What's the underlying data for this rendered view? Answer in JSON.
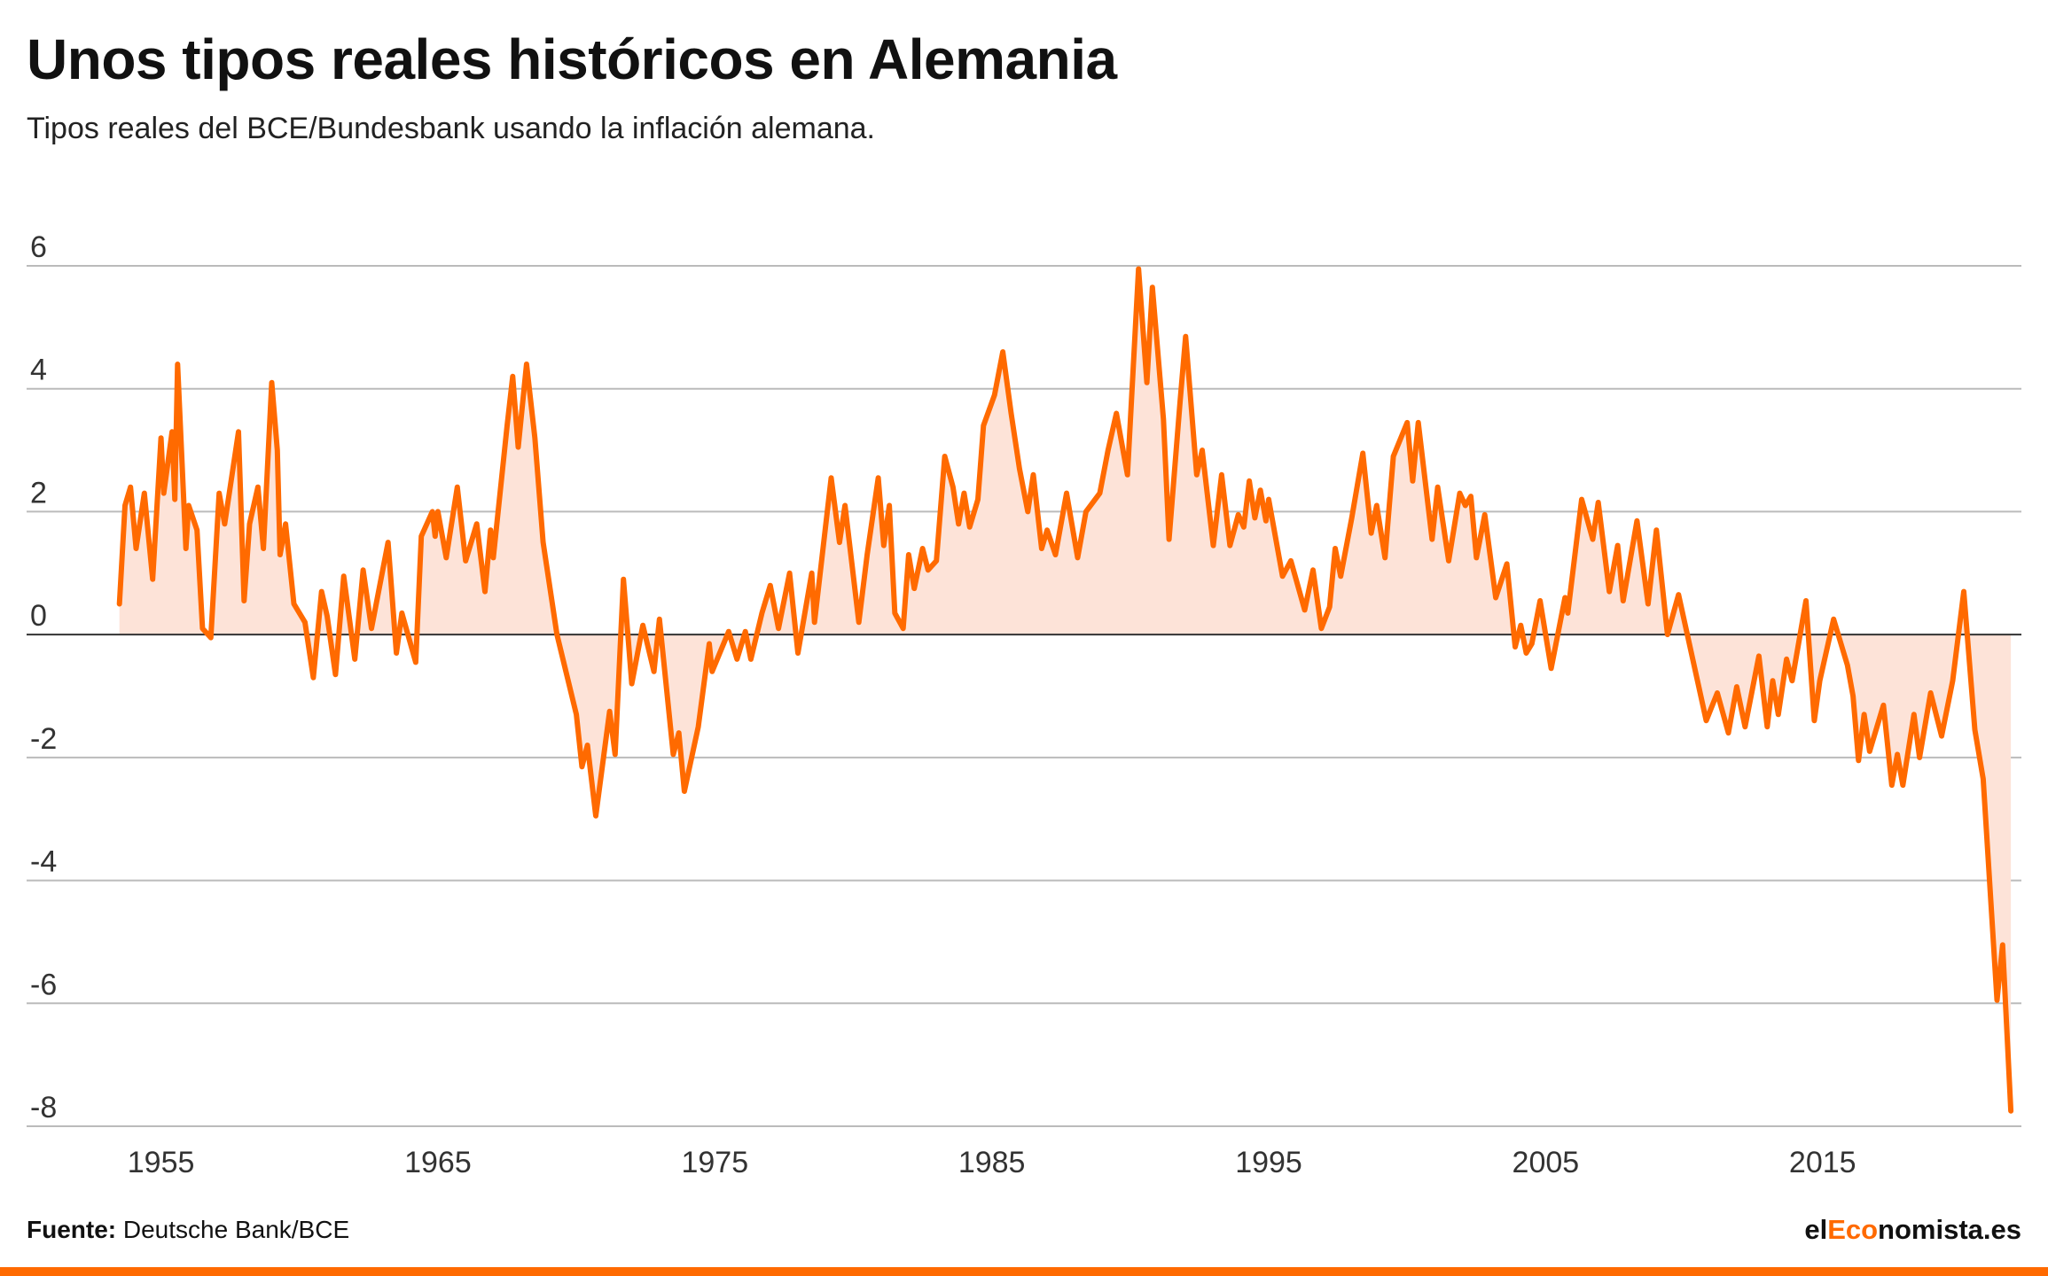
{
  "header": {
    "title": "Unos tipos reales históricos en Alemania",
    "subtitle": "Tipos reales del BCE/Bundesbank usando la inflación alemana."
  },
  "footer": {
    "source_label": "Fuente:",
    "source_text": "Deutsche Bank/BCE",
    "brand_prefix": "el",
    "brand_accent": "Eco",
    "brand_suffix": "nomista.es"
  },
  "colors": {
    "line": "#ff6a00",
    "area": "#fde3d8",
    "grid": "#bbbbbb",
    "zero_line": "#333333",
    "bottom_bar": "#ff6a00"
  },
  "chart_data": {
    "type": "area",
    "xlim": [
      1951.3,
      2022.5
    ],
    "ylim": [
      -8,
      6
    ],
    "yticks": [
      6,
      4,
      2,
      0,
      -2,
      -4,
      -6,
      -8
    ],
    "ytick_labels": [
      "6",
      "4",
      "2",
      "0",
      "-2",
      "-4",
      "-6",
      "-8"
    ],
    "xticks": [
      1955,
      1965,
      1975,
      1985,
      1995,
      2005,
      2015
    ],
    "xtick_labels": [
      "1955",
      "1965",
      "1975",
      "1985",
      "1995",
      "2005",
      "2015"
    ],
    "grid": true,
    "legend": "none",
    "series": [
      {
        "values": [
          [
            1953.5,
            0.5
          ],
          [
            1953.7,
            2.1
          ],
          [
            1953.9,
            2.4
          ],
          [
            1954.1,
            1.4
          ],
          [
            1954.4,
            2.3
          ],
          [
            1954.7,
            0.9
          ],
          [
            1955.0,
            3.2
          ],
          [
            1955.1,
            2.3
          ],
          [
            1955.4,
            3.3
          ],
          [
            1955.5,
            2.2
          ],
          [
            1955.6,
            4.4
          ],
          [
            1955.9,
            1.4
          ],
          [
            1956.0,
            2.1
          ],
          [
            1956.3,
            1.7
          ],
          [
            1956.5,
            0.1
          ],
          [
            1956.8,
            -0.05
          ],
          [
            1957.1,
            2.3
          ],
          [
            1957.3,
            1.8
          ],
          [
            1957.8,
            3.3
          ],
          [
            1958.0,
            0.55
          ],
          [
            1958.2,
            1.8
          ],
          [
            1958.5,
            2.4
          ],
          [
            1958.7,
            1.4
          ],
          [
            1959.0,
            4.1
          ],
          [
            1959.2,
            3.0
          ],
          [
            1959.3,
            1.3
          ],
          [
            1959.5,
            1.8
          ],
          [
            1959.8,
            0.5
          ],
          [
            1960.2,
            0.2
          ],
          [
            1960.5,
            -0.7
          ],
          [
            1960.8,
            0.7
          ],
          [
            1961.0,
            0.3
          ],
          [
            1961.3,
            -0.65
          ],
          [
            1961.6,
            0.95
          ],
          [
            1962.0,
            -0.4
          ],
          [
            1962.3,
            1.05
          ],
          [
            1962.6,
            0.1
          ],
          [
            1963.2,
            1.5
          ],
          [
            1963.5,
            -0.3
          ],
          [
            1963.7,
            0.35
          ],
          [
            1964.2,
            -0.45
          ],
          [
            1964.4,
            1.6
          ],
          [
            1964.8,
            2.0
          ],
          [
            1964.9,
            1.6
          ],
          [
            1965.0,
            2.0
          ],
          [
            1965.3,
            1.25
          ],
          [
            1965.7,
            2.4
          ],
          [
            1966.0,
            1.2
          ],
          [
            1966.4,
            1.8
          ],
          [
            1966.7,
            0.7
          ],
          [
            1966.9,
            1.7
          ],
          [
            1967.0,
            1.25
          ],
          [
            1967.5,
            3.4
          ],
          [
            1967.7,
            4.2
          ],
          [
            1967.9,
            3.05
          ],
          [
            1968.2,
            4.4
          ],
          [
            1968.5,
            3.2
          ],
          [
            1968.8,
            1.5
          ],
          [
            1969.3,
            0.0
          ],
          [
            1970.0,
            -1.3
          ],
          [
            1970.2,
            -2.15
          ],
          [
            1970.4,
            -1.8
          ],
          [
            1970.7,
            -2.95
          ],
          [
            1971.2,
            -1.25
          ],
          [
            1971.4,
            -1.95
          ],
          [
            1971.7,
            0.9
          ],
          [
            1972.0,
            -0.8
          ],
          [
            1972.4,
            0.15
          ],
          [
            1972.8,
            -0.6
          ],
          [
            1973.0,
            0.25
          ],
          [
            1973.5,
            -1.95
          ],
          [
            1973.7,
            -1.6
          ],
          [
            1973.9,
            -2.55
          ],
          [
            1974.4,
            -1.5
          ],
          [
            1974.8,
            -0.15
          ],
          [
            1974.9,
            -0.6
          ],
          [
            1975.5,
            0.05
          ],
          [
            1975.8,
            -0.4
          ],
          [
            1976.1,
            0.05
          ],
          [
            1976.3,
            -0.4
          ],
          [
            1976.7,
            0.35
          ],
          [
            1977.0,
            0.8
          ],
          [
            1977.3,
            0.1
          ],
          [
            1977.7,
            1.0
          ],
          [
            1978.0,
            -0.3
          ],
          [
            1978.5,
            1.0
          ],
          [
            1978.6,
            0.2
          ],
          [
            1979.2,
            2.55
          ],
          [
            1979.5,
            1.5
          ],
          [
            1979.7,
            2.1
          ],
          [
            1980.2,
            0.2
          ],
          [
            1980.5,
            1.3
          ],
          [
            1980.9,
            2.55
          ],
          [
            1981.1,
            1.45
          ],
          [
            1981.3,
            2.1
          ],
          [
            1981.5,
            0.35
          ],
          [
            1981.8,
            0.1
          ],
          [
            1982.0,
            1.3
          ],
          [
            1982.2,
            0.75
          ],
          [
            1982.5,
            1.4
          ],
          [
            1982.7,
            1.05
          ],
          [
            1983.0,
            1.2
          ],
          [
            1983.3,
            2.9
          ],
          [
            1983.6,
            2.4
          ],
          [
            1983.8,
            1.8
          ],
          [
            1984.0,
            2.3
          ],
          [
            1984.2,
            1.75
          ],
          [
            1984.5,
            2.2
          ],
          [
            1984.7,
            3.4
          ],
          [
            1985.1,
            3.9
          ],
          [
            1985.4,
            4.6
          ],
          [
            1985.7,
            3.6
          ],
          [
            1986.0,
            2.7
          ],
          [
            1986.3,
            2.0
          ],
          [
            1986.5,
            2.6
          ],
          [
            1986.8,
            1.4
          ],
          [
            1987.0,
            1.7
          ],
          [
            1987.3,
            1.3
          ],
          [
            1987.7,
            2.3
          ],
          [
            1988.1,
            1.25
          ],
          [
            1988.4,
            2.0
          ],
          [
            1988.9,
            2.3
          ],
          [
            1989.2,
            3.0
          ],
          [
            1989.5,
            3.6
          ],
          [
            1989.9,
            2.6
          ],
          [
            1990.3,
            5.95
          ],
          [
            1990.6,
            4.1
          ],
          [
            1990.8,
            5.65
          ],
          [
            1991.2,
            3.5
          ],
          [
            1991.4,
            1.55
          ],
          [
            1991.8,
            3.8
          ],
          [
            1992.0,
            4.85
          ],
          [
            1992.4,
            2.6
          ],
          [
            1992.6,
            3.0
          ],
          [
            1993.0,
            1.45
          ],
          [
            1993.3,
            2.6
          ],
          [
            1993.6,
            1.45
          ],
          [
            1993.9,
            1.95
          ],
          [
            1994.1,
            1.75
          ],
          [
            1994.3,
            2.5
          ],
          [
            1994.5,
            1.9
          ],
          [
            1994.7,
            2.35
          ],
          [
            1994.9,
            1.85
          ],
          [
            1995.0,
            2.2
          ],
          [
            1995.5,
            0.95
          ],
          [
            1995.8,
            1.2
          ],
          [
            1996.3,
            0.4
          ],
          [
            1996.6,
            1.05
          ],
          [
            1996.9,
            0.1
          ],
          [
            1997.2,
            0.45
          ],
          [
            1997.4,
            1.4
          ],
          [
            1997.6,
            0.95
          ],
          [
            1998.0,
            1.9
          ],
          [
            1998.4,
            2.95
          ],
          [
            1998.7,
            1.65
          ],
          [
            1998.9,
            2.1
          ],
          [
            1999.2,
            1.25
          ],
          [
            1999.5,
            2.9
          ],
          [
            2000.0,
            3.45
          ],
          [
            2000.2,
            2.5
          ],
          [
            2000.4,
            3.45
          ],
          [
            2000.9,
            1.55
          ],
          [
            2001.1,
            2.4
          ],
          [
            2001.5,
            1.2
          ],
          [
            2001.9,
            2.3
          ],
          [
            2002.1,
            2.1
          ],
          [
            2002.3,
            2.25
          ],
          [
            2002.5,
            1.25
          ],
          [
            2002.8,
            1.95
          ],
          [
            2003.2,
            0.6
          ],
          [
            2003.6,
            1.15
          ],
          [
            2003.9,
            -0.2
          ],
          [
            2004.1,
            0.15
          ],
          [
            2004.3,
            -0.3
          ],
          [
            2004.5,
            -0.15
          ],
          [
            2004.8,
            0.55
          ],
          [
            2005.2,
            -0.55
          ],
          [
            2005.7,
            0.6
          ],
          [
            2005.8,
            0.35
          ],
          [
            2006.3,
            2.2
          ],
          [
            2006.7,
            1.55
          ],
          [
            2006.9,
            2.15
          ],
          [
            2007.3,
            0.7
          ],
          [
            2007.6,
            1.45
          ],
          [
            2007.8,
            0.55
          ],
          [
            2008.3,
            1.85
          ],
          [
            2008.7,
            0.5
          ],
          [
            2009.0,
            1.7
          ],
          [
            2009.4,
            0.0
          ],
          [
            2009.8,
            0.65
          ],
          [
            2010.8,
            -1.4
          ],
          [
            2011.2,
            -0.95
          ],
          [
            2011.6,
            -1.6
          ],
          [
            2011.9,
            -0.85
          ],
          [
            2012.2,
            -1.5
          ],
          [
            2012.7,
            -0.35
          ],
          [
            2013.0,
            -1.5
          ],
          [
            2013.2,
            -0.75
          ],
          [
            2013.4,
            -1.3
          ],
          [
            2013.7,
            -0.4
          ],
          [
            2013.9,
            -0.75
          ],
          [
            2014.4,
            0.55
          ],
          [
            2014.7,
            -1.4
          ],
          [
            2014.9,
            -0.75
          ],
          [
            2015.4,
            0.25
          ],
          [
            2015.9,
            -0.5
          ],
          [
            2016.1,
            -1.0
          ],
          [
            2016.3,
            -2.05
          ],
          [
            2016.5,
            -1.3
          ],
          [
            2016.7,
            -1.9
          ],
          [
            2017.2,
            -1.15
          ],
          [
            2017.5,
            -2.45
          ],
          [
            2017.7,
            -1.95
          ],
          [
            2017.9,
            -2.45
          ],
          [
            2018.3,
            -1.3
          ],
          [
            2018.5,
            -2.0
          ],
          [
            2018.9,
            -0.95
          ],
          [
            2019.3,
            -1.65
          ],
          [
            2019.7,
            -0.75
          ],
          [
            2020.1,
            0.7
          ],
          [
            2020.5,
            -1.55
          ],
          [
            2020.8,
            -2.35
          ],
          [
            2021.3,
            -5.95
          ],
          [
            2021.5,
            -5.05
          ],
          [
            2021.8,
            -7.75
          ]
        ]
      }
    ]
  }
}
